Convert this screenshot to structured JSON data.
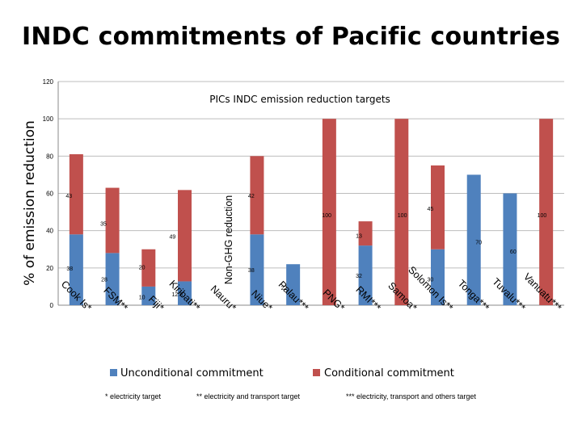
{
  "title": "INDC commitments of Pacific countries",
  "chart_data": {
    "type": "bar",
    "stacked": true,
    "title": "PICs INDC emission reduction targets",
    "ylabel": "% of emission reduction",
    "ylim": [
      0,
      120
    ],
    "yticks": [
      0,
      20,
      40,
      60,
      80,
      100,
      120
    ],
    "grid": true,
    "legend_position": "bottom",
    "categories": [
      "Cook Is*",
      "FSM**",
      "Fiji*",
      "Kiribati**",
      "Nauru*",
      "Niue*",
      "Palau***",
      "PNG*",
      "RMI***",
      "Samoa*",
      "Solomon Is**",
      "Tonga***",
      "Tuvalu***",
      "Vanuatu***"
    ],
    "series": [
      {
        "name": "Unconditional commitment",
        "color": "#4f81bd",
        "values": [
          38,
          28,
          10,
          12.8,
          0,
          38,
          22,
          0,
          32,
          0,
          30,
          70,
          60,
          0
        ]
      },
      {
        "name": "Conditional commitment",
        "color": "#c0504d",
        "values": [
          43,
          35,
          20,
          49,
          0,
          42,
          0,
          100,
          13,
          100,
          45,
          0,
          0,
          100
        ]
      }
    ],
    "data_labels": {
      "unconditional": [
        "38",
        "28",
        "10",
        "12.8",
        "",
        "38",
        "22",
        "",
        "32",
        "",
        "30",
        "70",
        "60",
        ""
      ],
      "conditional": [
        "43",
        "35",
        "20",
        "49",
        "",
        "42",
        "",
        "100",
        "13",
        "100",
        "45",
        "",
        "",
        "100"
      ]
    },
    "annotations": [
      "Non-GHG reduction"
    ],
    "footnotes": [
      "* electricity target",
      "** electricity and transport target",
      "*** electricity, transport and others target"
    ]
  }
}
